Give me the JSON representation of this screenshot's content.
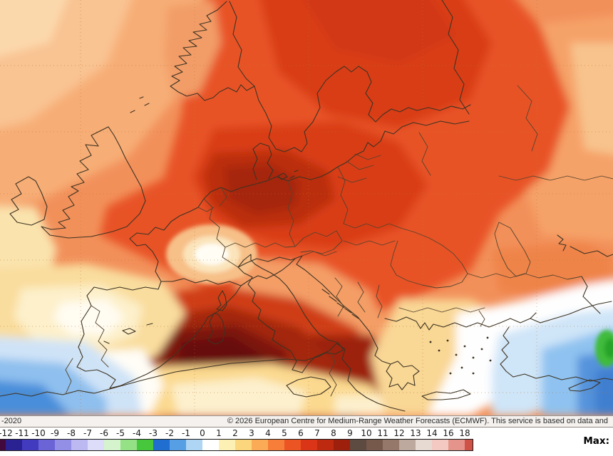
{
  "footer": {
    "left_text": "-2020",
    "copyright_text": "© 2026 European Centre for Medium-Range Weather Forecasts (ECMWF). This service is based on data and"
  },
  "legend": {
    "max_label": "Max:",
    "tick_labels": [
      "-12",
      "-11",
      "-10",
      "-9",
      "-8",
      "-7",
      "-6",
      "-5",
      "-4",
      "-3",
      "-2",
      "-1",
      "0",
      "1",
      "2",
      "3",
      "4",
      "5",
      "6",
      "7",
      "8",
      "9",
      "10",
      "11",
      "12",
      "13",
      "14",
      "16",
      "18"
    ],
    "cells": [
      {
        "range": "<-12",
        "color": "#42093c"
      },
      {
        "range": "-12..-11",
        "color": "#2a2193"
      },
      {
        "range": "-11..-10",
        "color": "#423bc0"
      },
      {
        "range": "-10..-9",
        "color": "#6b64d7"
      },
      {
        "range": "-9..-8",
        "color": "#948fe6"
      },
      {
        "range": "-8..-7",
        "color": "#bcb9f2"
      },
      {
        "range": "-7..-6",
        "color": "#dddcf9"
      },
      {
        "range": "-6..-5",
        "color": "#d5f3cd"
      },
      {
        "range": "-5..-4",
        "color": "#94e186"
      },
      {
        "range": "-4..-3",
        "color": "#46c73c"
      },
      {
        "range": "-3..-2",
        "color": "#1f6ed0"
      },
      {
        "range": "-2..-1",
        "color": "#569fe5"
      },
      {
        "range": "-1..0",
        "color": "#aed5f3"
      },
      {
        "range": "0..1",
        "color": "#ffffff"
      },
      {
        "range": "1..2",
        "color": "#fdf0b5"
      },
      {
        "range": "2..3",
        "color": "#fcd67c"
      },
      {
        "range": "3..4",
        "color": "#fbaa55"
      },
      {
        "range": "4..5",
        "color": "#f67e38"
      },
      {
        "range": "5..6",
        "color": "#ec5424"
      },
      {
        "range": "6..7",
        "color": "#da3517"
      },
      {
        "range": "7..8",
        "color": "#bd2a10"
      },
      {
        "range": "8..9",
        "color": "#9c200c"
      },
      {
        "range": "9..10",
        "color": "#5d4a41"
      },
      {
        "range": "10..11",
        "color": "#77594b"
      },
      {
        "range": "11..12",
        "color": "#95786a"
      },
      {
        "range": "12..13",
        "color": "#bda99d"
      },
      {
        "range": "13..14",
        "color": "#e6dad3"
      },
      {
        "range": "14..16",
        "color": "#f3c9c2"
      },
      {
        "range": "16..18",
        "color": "#e4948a"
      },
      {
        "range": ">18",
        "color": "#d05145"
      }
    ]
  },
  "map": {
    "description": "2 m temperature anomaly over Europe, warm (red/orange) over most of the continent, cold (blue) over the eastern Mediterranean and off Morocco",
    "gridline_color": "#b8762e",
    "coastline_color": "#3d3322",
    "border_color": "#54432c",
    "palette": {
      "base": "#f2905a",
      "nw_light": "#f7ad76",
      "nw_lighter": "#f9c392",
      "corner_pale": "#fbd8ac",
      "east_light": "#f5a268",
      "east_pale": "#f8c38d",
      "anatolia_orange": "#ef8449",
      "red_main": "#e85327",
      "red_dark": "#d93d18",
      "sweden_dark": "#d23814",
      "germany_dark": "#bb2d10",
      "germany_darkest": "#a52508",
      "norway_light": "#f29d68",
      "alps_ring2": "#f7c088",
      "alps_ring1": "#fbe4bb",
      "alps_white": "#fffdf4",
      "italy_light": "#f49e66",
      "maghreb_outer": "#cf3d17",
      "maghreb_mid": "#a3270f",
      "maghreb_dark": "#7d160b",
      "maghreb_darkest": "#67100a",
      "tunisia_dark": "#9c2210",
      "spain_cream": "#f9dd9e",
      "spain_pale": "#fdf0cb",
      "spain_white": "#fffcf2",
      "west_cream": "#fae3ad",
      "sw_white": "#fffdf6",
      "sw_blue_pale": "#cfe3f7",
      "sw_blue": "#8ebfee",
      "sw_blue_deep": "#4a8eda",
      "bottom_yellow": "#fbd98f",
      "bottom_cream": "#fdf0cd",
      "se_cream": "#f9d795",
      "se_white": "#fefefe",
      "se_blue_pale": "#cfe5f8",
      "se_blue": "#8fc2f0",
      "se_blue_deep": "#5493dc",
      "se_blue_deepest": "#3f7fd0",
      "green_spot": "#3fbb3a",
      "green_spot_dark": "#27a32b"
    }
  }
}
